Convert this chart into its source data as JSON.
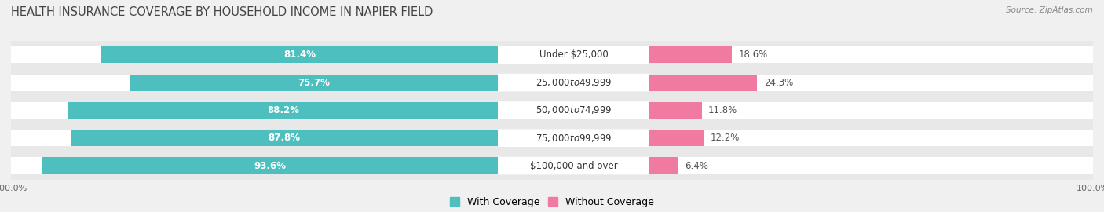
{
  "title": "HEALTH INSURANCE COVERAGE BY HOUSEHOLD INCOME IN NAPIER FIELD",
  "source": "Source: ZipAtlas.com",
  "categories": [
    "Under $25,000",
    "$25,000 to $49,999",
    "$50,000 to $74,999",
    "$75,000 to $99,999",
    "$100,000 and over"
  ],
  "with_coverage": [
    81.4,
    75.7,
    88.2,
    87.8,
    93.6
  ],
  "without_coverage": [
    18.6,
    24.3,
    11.8,
    12.2,
    6.4
  ],
  "color_with": "#4dbfbf",
  "color_without": "#f07aa0",
  "background_color": "#f0f0f0",
  "bar_bg_color": "#e8e8e8",
  "white_bar_color": "#ffffff",
  "title_fontsize": 10.5,
  "label_fontsize": 8.5,
  "legend_fontsize": 9,
  "axis_label_fontsize": 8,
  "bar_height": 0.6,
  "category_fontsize": 8.5
}
